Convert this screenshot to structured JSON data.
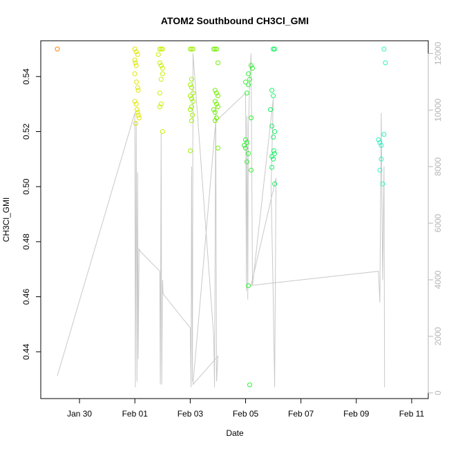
{
  "chart_data": {
    "type": "scatter",
    "title": "ATOM2 Southbound CH3Cl_GMI",
    "xlabel": "Date",
    "ylabel": "CH3Cl_GMI",
    "x_ticks": [
      "Jan 30",
      "Feb 01",
      "Feb 03",
      "Feb 05",
      "Feb 07",
      "Feb 09",
      "Feb 11"
    ],
    "x_tick_days": [
      30,
      32,
      34,
      36,
      38,
      40,
      42
    ],
    "xlim_days": [
      28.6,
      42.6
    ],
    "ylim": [
      0.423,
      0.553
    ],
    "y_ticks": [
      0.44,
      0.46,
      0.48,
      0.5,
      0.52,
      0.54
    ],
    "y_tick_labels": [
      "0.44",
      "0.46",
      "0.48",
      "0.50",
      "0.52",
      "0.54"
    ],
    "right_axis": {
      "ylim": [
        -200,
        12450
      ],
      "ticks": [
        0,
        2000,
        4000,
        6000,
        8000,
        10000,
        12000
      ],
      "tick_labels": [
        "0",
        "2000",
        "4000",
        "6000",
        "8000",
        "10000",
        "12000"
      ],
      "color": "#b5b5b5"
    },
    "series": [
      {
        "color": "#ff7f00",
        "points": [
          [
            29.2,
            0.55
          ]
        ]
      },
      {
        "color": "#dde600",
        "points": [
          [
            32.0,
            0.55
          ],
          [
            32.05,
            0.549
          ],
          [
            32.1,
            0.548
          ],
          [
            32.0,
            0.546
          ],
          [
            32.02,
            0.545
          ],
          [
            32.05,
            0.544
          ],
          [
            32.0,
            0.541
          ],
          [
            32.06,
            0.538
          ],
          [
            32.1,
            0.536
          ],
          [
            32.12,
            0.535
          ],
          [
            32.0,
            0.531
          ],
          [
            32.05,
            0.53
          ],
          [
            32.08,
            0.528
          ],
          [
            32.1,
            0.527
          ],
          [
            32.12,
            0.526
          ],
          [
            32.15,
            0.525
          ],
          [
            32.03,
            0.523
          ]
        ]
      },
      {
        "color": "#c8f000",
        "points": [
          [
            32.9,
            0.55
          ],
          [
            32.95,
            0.55
          ],
          [
            33.0,
            0.55
          ],
          [
            32.85,
            0.548
          ],
          [
            32.9,
            0.545
          ],
          [
            32.95,
            0.544
          ],
          [
            33.0,
            0.543
          ],
          [
            33.0,
            0.541
          ],
          [
            32.95,
            0.539
          ],
          [
            32.9,
            0.534
          ],
          [
            32.95,
            0.53
          ],
          [
            32.9,
            0.529
          ],
          [
            33.0,
            0.52
          ]
        ]
      },
      {
        "color": "#9ff000",
        "points": [
          [
            34.0,
            0.55
          ],
          [
            34.05,
            0.55
          ],
          [
            34.1,
            0.55
          ],
          [
            34.05,
            0.539
          ],
          [
            34.0,
            0.537
          ],
          [
            34.05,
            0.536
          ],
          [
            34.1,
            0.534
          ],
          [
            34.0,
            0.533
          ],
          [
            34.05,
            0.532
          ],
          [
            34.1,
            0.531
          ],
          [
            34.05,
            0.529
          ],
          [
            34.0,
            0.528
          ],
          [
            34.08,
            0.526
          ],
          [
            34.05,
            0.524
          ],
          [
            34.0,
            0.513
          ]
        ]
      },
      {
        "color": "#70f000",
        "points": [
          [
            34.85,
            0.55
          ],
          [
            34.9,
            0.55
          ],
          [
            34.95,
            0.55
          ],
          [
            35.0,
            0.545
          ],
          [
            34.9,
            0.535
          ],
          [
            34.95,
            0.534
          ],
          [
            35.0,
            0.533
          ],
          [
            34.9,
            0.531
          ],
          [
            34.95,
            0.53
          ],
          [
            35.0,
            0.529
          ],
          [
            34.85,
            0.528
          ],
          [
            34.9,
            0.527
          ],
          [
            34.95,
            0.525
          ],
          [
            34.9,
            0.524
          ],
          [
            35.0,
            0.514
          ]
        ]
      },
      {
        "color": "#30f030",
        "points": [
          [
            36.2,
            0.544
          ],
          [
            36.25,
            0.543
          ],
          [
            36.1,
            0.541
          ],
          [
            36.15,
            0.539
          ],
          [
            36.0,
            0.538
          ],
          [
            36.1,
            0.537
          ],
          [
            36.05,
            0.534
          ],
          [
            36.2,
            0.525
          ],
          [
            36.0,
            0.517
          ],
          [
            36.05,
            0.516
          ],
          [
            35.95,
            0.515
          ],
          [
            36.0,
            0.514
          ],
          [
            36.1,
            0.512
          ],
          [
            36.05,
            0.509
          ],
          [
            36.2,
            0.506
          ],
          [
            36.1,
            0.464
          ],
          [
            36.15,
            0.428
          ]
        ]
      },
      {
        "color": "#10f060",
        "points": [
          [
            37.0,
            0.55
          ],
          [
            37.05,
            0.55
          ],
          [
            36.95,
            0.535
          ],
          [
            37.0,
            0.533
          ],
          [
            36.9,
            0.528
          ],
          [
            36.95,
            0.522
          ],
          [
            37.05,
            0.52
          ],
          [
            37.0,
            0.518
          ],
          [
            37.02,
            0.513
          ],
          [
            37.05,
            0.512
          ],
          [
            36.95,
            0.511
          ],
          [
            37.0,
            0.51
          ],
          [
            36.95,
            0.507
          ],
          [
            37.05,
            0.501
          ]
        ]
      },
      {
        "color": "#30f0c0",
        "points": [
          [
            41.0,
            0.55
          ],
          [
            41.05,
            0.545
          ],
          [
            40.8,
            0.517
          ],
          [
            40.85,
            0.516
          ],
          [
            40.9,
            0.515
          ],
          [
            41.0,
            0.519
          ],
          [
            40.9,
            0.51
          ],
          [
            40.85,
            0.506
          ],
          [
            40.95,
            0.501
          ]
        ]
      }
    ],
    "altitude_line": {
      "color": "#c8c8c8",
      "points": [
        [
          29.2,
          600
        ],
        [
          32.0,
          9900
        ],
        [
          32.02,
          200
        ],
        [
          32.05,
          9600
        ],
        [
          32.08,
          400
        ],
        [
          32.1,
          7800
        ],
        [
          32.12,
          1200
        ],
        [
          32.15,
          5100
        ],
        [
          32.2,
          5000
        ],
        [
          32.9,
          4300
        ],
        [
          32.92,
          300
        ],
        [
          32.95,
          9200
        ],
        [
          32.97,
          300
        ],
        [
          33.0,
          4000
        ],
        [
          33.02,
          3500
        ],
        [
          34.0,
          2300
        ],
        [
          34.03,
          200
        ],
        [
          34.05,
          8000
        ],
        [
          34.08,
          400
        ],
        [
          34.1,
          12000
        ],
        [
          34.85,
          2000
        ],
        [
          34.88,
          200
        ],
        [
          34.92,
          10100
        ],
        [
          34.95,
          400
        ],
        [
          35.0,
          1300
        ],
        [
          34.1,
          300
        ],
        [
          34.92,
          9600
        ],
        [
          36.0,
          10600
        ],
        [
          36.03,
          3600
        ],
        [
          36.05,
          9800
        ],
        [
          36.08,
          3300
        ],
        [
          36.1,
          9200
        ],
        [
          36.15,
          11000
        ],
        [
          36.2,
          12000
        ],
        [
          36.25,
          3800
        ],
        [
          37.0,
          10400
        ],
        [
          36.92,
          7300
        ],
        [
          37.0,
          3300
        ],
        [
          37.05,
          200
        ],
        [
          37.1,
          7600
        ],
        [
          36.2,
          3800
        ],
        [
          40.8,
          4300
        ],
        [
          40.85,
          3200
        ],
        [
          40.9,
          9900
        ],
        [
          40.95,
          4000
        ],
        [
          41.0,
          8000
        ],
        [
          41.02,
          200
        ]
      ]
    }
  }
}
